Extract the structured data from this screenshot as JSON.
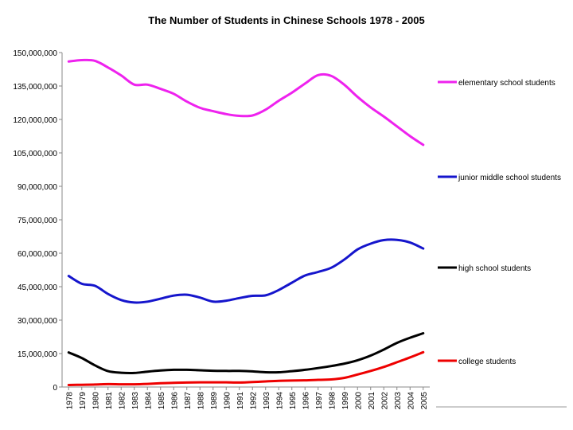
{
  "chart_data": {
    "type": "line",
    "title": "The Number of Students in Chinese Schools 1978 - 2005",
    "xlabel": "",
    "ylabel": "",
    "ylim": [
      0,
      150000000
    ],
    "yticks": [
      0,
      15000000,
      30000000,
      45000000,
      60000000,
      75000000,
      90000000,
      105000000,
      120000000,
      135000000,
      150000000
    ],
    "ytick_labels": [
      "0",
      "15,000,000",
      "30,000,000",
      "45,000,000",
      "60,000,000",
      "75,000,000",
      "90,000,000",
      "105,000,000",
      "120,000,000",
      "135,000,000",
      "150,000,000"
    ],
    "grid": false,
    "legend_position": "right",
    "x": [
      "1978",
      "1979",
      "1980",
      "1981",
      "1982",
      "1983",
      "1984",
      "1985",
      "1986",
      "1987",
      "1988",
      "1989",
      "1990",
      "1991",
      "1992",
      "1993",
      "1994",
      "1995",
      "1996",
      "1997",
      "1998",
      "1999",
      "2000",
      "2001",
      "2002",
      "2003",
      "2004",
      "2005"
    ],
    "series": [
      {
        "name": "elementary school students",
        "color": "#ee22ee",
        "values": [
          146000000,
          146600000,
          146300000,
          143300000,
          139700000,
          135600000,
          135600000,
          133700000,
          131500000,
          128000000,
          125200000,
          123700000,
          122400000,
          121600000,
          121800000,
          124400000,
          128400000,
          132000000,
          136100000,
          139900000,
          139500000,
          135500000,
          130100000,
          125400000,
          121300000,
          116900000,
          112500000,
          108600000
        ]
      },
      {
        "name": "junior middle school students",
        "color": "#1515cc",
        "values": [
          49800000,
          46300000,
          45400000,
          41700000,
          39000000,
          37900000,
          38300000,
          39600000,
          41000000,
          41400000,
          40100000,
          38300000,
          38700000,
          39900000,
          40900000,
          41100000,
          43500000,
          46800000,
          50000000,
          51600000,
          53500000,
          57200000,
          61700000,
          64300000,
          65900000,
          66000000,
          64800000,
          62100000
        ]
      },
      {
        "name": "high school students",
        "color": "#000000",
        "values": [
          15500000,
          13000000,
          9700000,
          7100000,
          6400000,
          6300000,
          6900000,
          7400000,
          7700000,
          7700000,
          7500000,
          7300000,
          7200000,
          7200000,
          7000000,
          6600000,
          6600000,
          7100000,
          7700000,
          8500000,
          9400000,
          10500000,
          12000000,
          14100000,
          16800000,
          19800000,
          22100000,
          24100000
        ]
      },
      {
        "name": "college students",
        "color": "#ee0000",
        "values": [
          900000,
          1000000,
          1100000,
          1300000,
          1200000,
          1200000,
          1400000,
          1700000,
          1900000,
          2000000,
          2100000,
          2100000,
          2100000,
          2000000,
          2200000,
          2500000,
          2800000,
          2900000,
          3000000,
          3200000,
          3400000,
          4100000,
          5600000,
          7200000,
          9000000,
          11100000,
          13300000,
          15600000
        ]
      }
    ]
  }
}
